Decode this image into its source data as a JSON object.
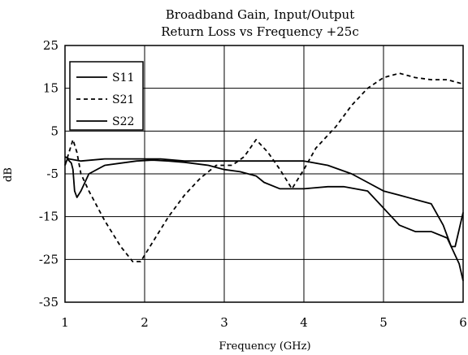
{
  "chart_data": {
    "type": "line",
    "title": "Broadband Gain, Input/Output",
    "subtitle": "Return Loss vs Frequency +25c",
    "xlabel": "Frequency (GHz)",
    "ylabel": "dB",
    "xlim": [
      1,
      6
    ],
    "ylim": [
      -35,
      25
    ],
    "xticks": [
      1,
      2,
      3,
      4,
      5,
      6
    ],
    "yticks": [
      25,
      15,
      5,
      -5,
      -15,
      -25,
      -35
    ],
    "grid": true,
    "legend": "top-left",
    "series": [
      {
        "name": "S11",
        "style": "solid",
        "color": "#000000",
        "points": [
          [
            1.0,
            -3
          ],
          [
            1.03,
            -1.5
          ],
          [
            1.08,
            -2.5
          ],
          [
            1.1,
            -4
          ],
          [
            1.12,
            -9
          ],
          [
            1.15,
            -10.5
          ],
          [
            1.2,
            -9
          ],
          [
            1.3,
            -5
          ],
          [
            1.5,
            -3
          ],
          [
            1.7,
            -2.5
          ],
          [
            1.9,
            -2
          ],
          [
            2.1,
            -1.8
          ],
          [
            2.3,
            -2
          ],
          [
            2.5,
            -2.3
          ],
          [
            2.8,
            -3
          ],
          [
            3.0,
            -4
          ],
          [
            3.2,
            -4.5
          ],
          [
            3.4,
            -5.5
          ],
          [
            3.5,
            -7
          ],
          [
            3.7,
            -8.5
          ],
          [
            4.0,
            -8.5
          ],
          [
            4.3,
            -8
          ],
          [
            4.5,
            -8
          ],
          [
            4.8,
            -9
          ],
          [
            5.0,
            -13
          ],
          [
            5.1,
            -15
          ],
          [
            5.2,
            -17
          ],
          [
            5.4,
            -18.5
          ],
          [
            5.6,
            -18.5
          ],
          [
            5.8,
            -20
          ],
          [
            5.95,
            -26
          ],
          [
            6.0,
            -30
          ]
        ]
      },
      {
        "name": "S21",
        "style": "dashed",
        "color": "#000000",
        "points": [
          [
            1.0,
            -3
          ],
          [
            1.05,
            0
          ],
          [
            1.1,
            3
          ],
          [
            1.15,
            0
          ],
          [
            1.2,
            -5
          ],
          [
            1.3,
            -9
          ],
          [
            1.5,
            -16
          ],
          [
            1.7,
            -22
          ],
          [
            1.85,
            -25.5
          ],
          [
            1.95,
            -25.5
          ],
          [
            2.1,
            -21
          ],
          [
            2.3,
            -15
          ],
          [
            2.5,
            -10
          ],
          [
            2.7,
            -6
          ],
          [
            2.9,
            -3
          ],
          [
            3.1,
            -3
          ],
          [
            3.25,
            -1
          ],
          [
            3.4,
            3
          ],
          [
            3.55,
            0
          ],
          [
            3.7,
            -4
          ],
          [
            3.85,
            -8.5
          ],
          [
            4.0,
            -4
          ],
          [
            4.15,
            1
          ],
          [
            4.4,
            6
          ],
          [
            4.6,
            11
          ],
          [
            4.8,
            15
          ],
          [
            5.0,
            17.5
          ],
          [
            5.2,
            18.5
          ],
          [
            5.4,
            17.5
          ],
          [
            5.6,
            17
          ],
          [
            5.8,
            17
          ],
          [
            6.0,
            16
          ]
        ]
      },
      {
        "name": "S22",
        "style": "solid",
        "color": "#000000",
        "points": [
          [
            1.0,
            -1
          ],
          [
            1.05,
            -1.5
          ],
          [
            1.2,
            -2
          ],
          [
            1.5,
            -1.5
          ],
          [
            1.9,
            -1.5
          ],
          [
            2.2,
            -1.5
          ],
          [
            2.5,
            -2
          ],
          [
            3.0,
            -2
          ],
          [
            3.5,
            -2
          ],
          [
            4.0,
            -2
          ],
          [
            4.3,
            -3
          ],
          [
            4.6,
            -5
          ],
          [
            4.8,
            -7
          ],
          [
            5.0,
            -9
          ],
          [
            5.2,
            -10
          ],
          [
            5.4,
            -11
          ],
          [
            5.6,
            -12
          ],
          [
            5.75,
            -17
          ],
          [
            5.85,
            -22
          ],
          [
            5.9,
            -22
          ],
          [
            5.95,
            -18
          ],
          [
            6.0,
            -14
          ]
        ]
      }
    ]
  }
}
